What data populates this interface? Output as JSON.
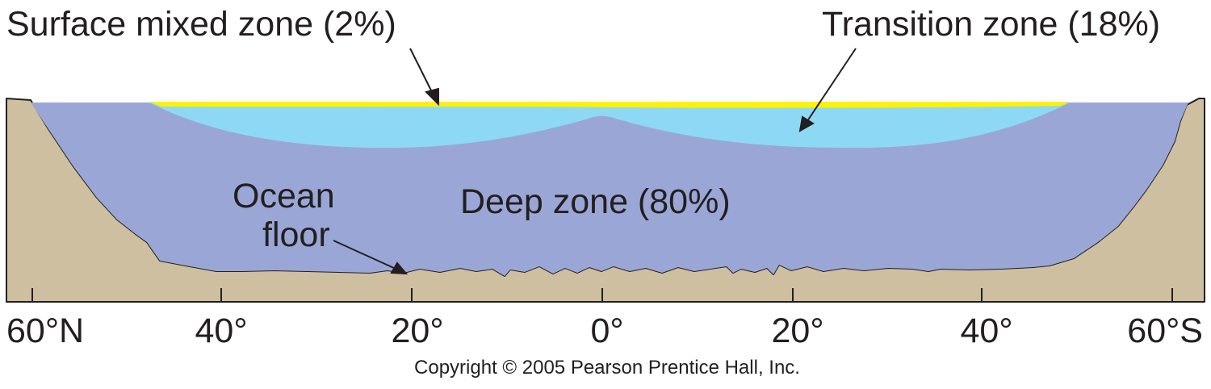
{
  "labels": {
    "surface_mixed_zone": "Surface mixed zone (2%)",
    "transition_zone": "Transition zone (18%)",
    "deep_zone": "Deep zone (80%)",
    "ocean_floor_line1": "Ocean",
    "ocean_floor_line2": "floor"
  },
  "latitude_ticks": [
    "60°N",
    "40°",
    "20°",
    "0°",
    "20°",
    "40°",
    "60°S"
  ],
  "copyright": "Copyright © 2005 Pearson Prentice Hall, Inc.",
  "colors": {
    "surface_mixed_zone": "#fff200",
    "transition_zone": "#8dd9f5",
    "deep_zone": "#9aa7d6",
    "land": "#cdbf9f",
    "outline": "#231f20"
  }
}
